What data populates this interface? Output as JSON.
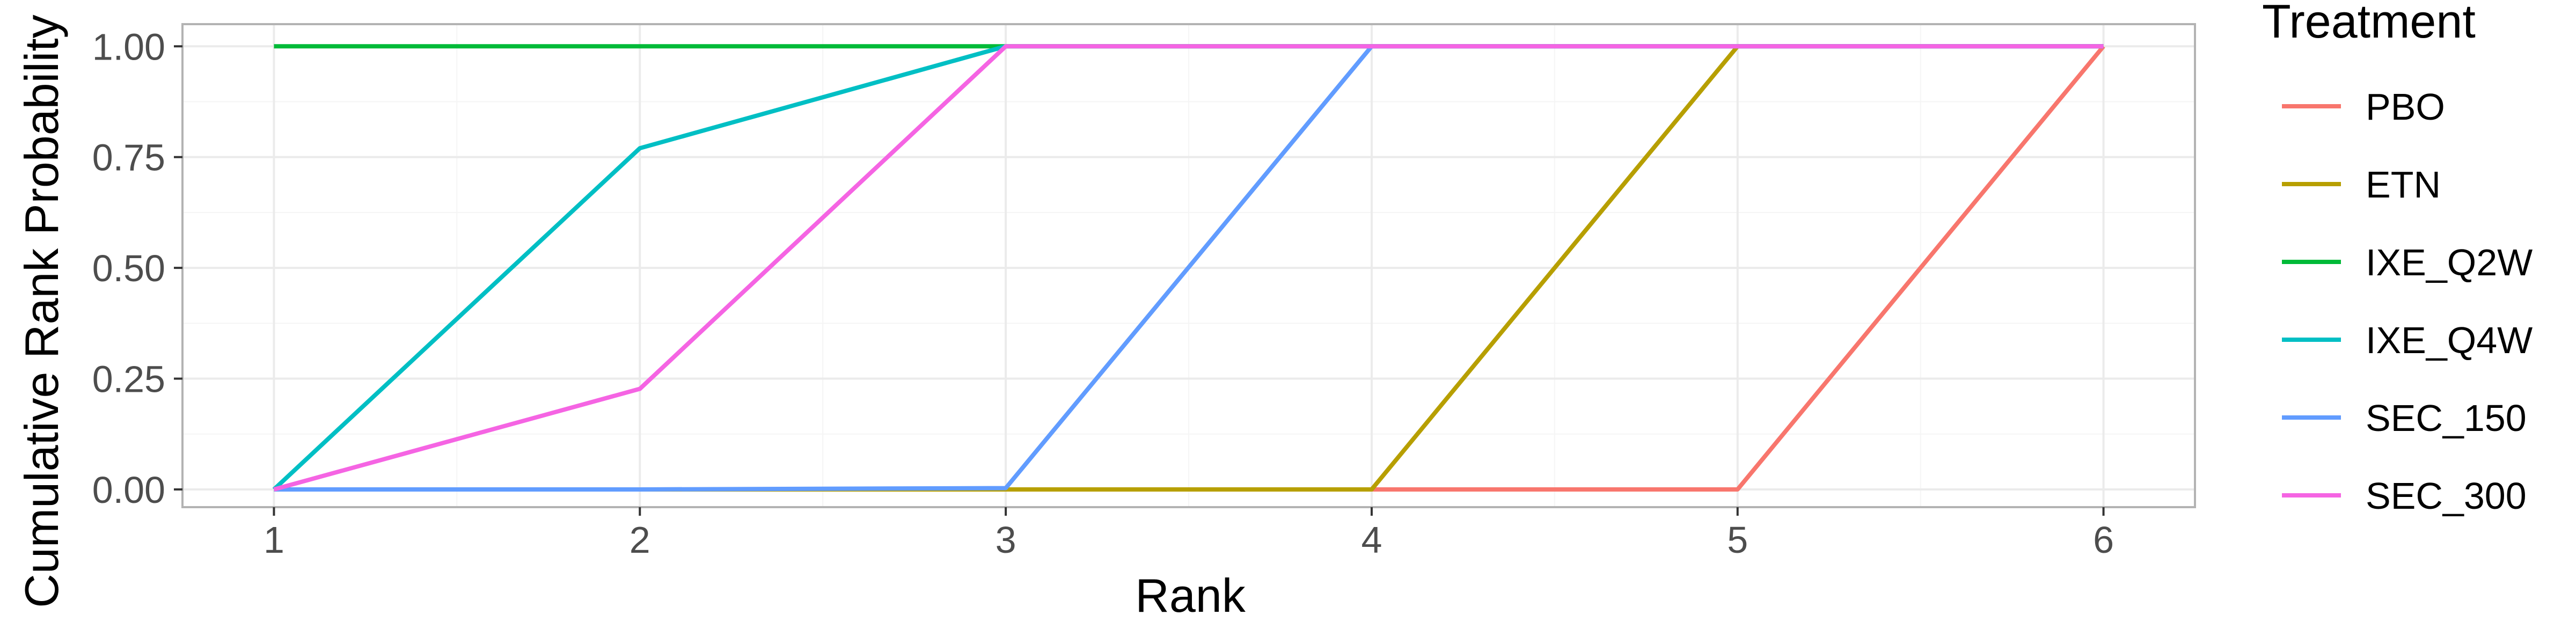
{
  "chart_data": {
    "type": "line",
    "xlabel": "Rank",
    "ylabel": "Cumulative Rank Probability",
    "x": [
      1,
      2,
      3,
      4,
      5,
      6
    ],
    "xlim": [
      0.75,
      6.25
    ],
    "ylim": [
      -0.04,
      1.05
    ],
    "x_ticks": [
      "1",
      "2",
      "3",
      "4",
      "5",
      "6"
    ],
    "y_ticks": [
      "0.00",
      "0.25",
      "0.50",
      "0.75",
      "1.00"
    ],
    "grid": true,
    "legend": {
      "title": "Treatment",
      "placement": "right"
    },
    "series": [
      {
        "name": "PBO",
        "color": "#F8766D",
        "values": [
          0,
          0,
          0,
          0,
          0,
          1
        ]
      },
      {
        "name": "ETN",
        "color": "#B79F00",
        "values": [
          0,
          0,
          0,
          0,
          1,
          1
        ]
      },
      {
        "name": "IXE_Q2W",
        "color": "#00BA38",
        "values": [
          1,
          1,
          1,
          1,
          1,
          1
        ]
      },
      {
        "name": "IXE_Q4W",
        "color": "#00BFC4",
        "values": [
          0,
          0.77,
          1,
          1,
          1,
          1
        ]
      },
      {
        "name": "SEC_150",
        "color": "#619CFF",
        "values": [
          0,
          0,
          0.003,
          1,
          1,
          1
        ]
      },
      {
        "name": "SEC_300",
        "color": "#F564E3",
        "values": [
          0,
          0.227,
          1,
          1,
          1,
          1
        ]
      }
    ]
  }
}
